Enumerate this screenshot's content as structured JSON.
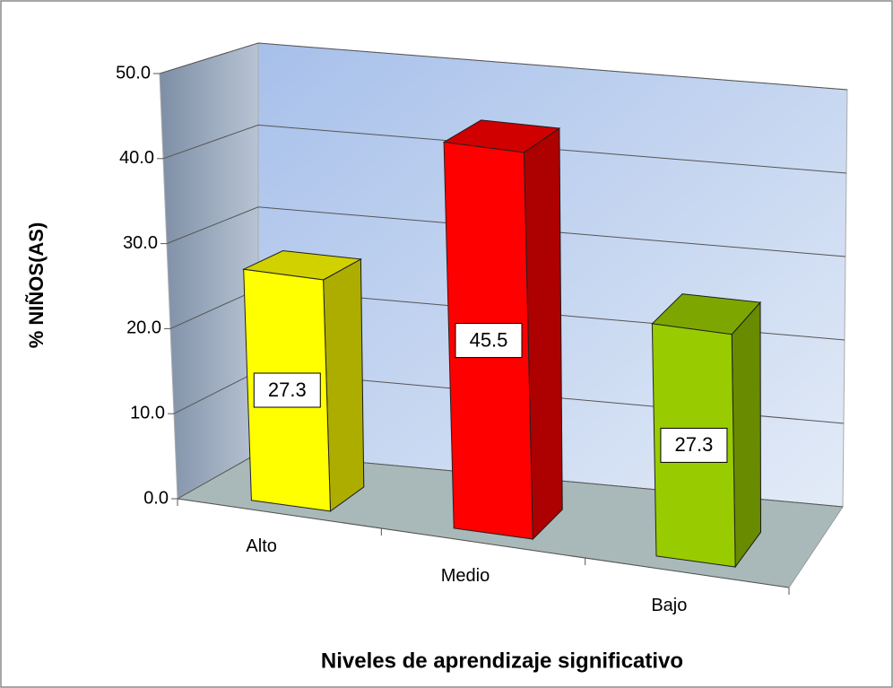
{
  "chart_data": {
    "type": "bar3d",
    "xlabel": "Niveles de aprendizaje significativo",
    "ylabel": "% NIÑOS(AS)",
    "categories": [
      "Alto",
      "Medio",
      "Bajo"
    ],
    "values": [
      27.3,
      45.5,
      27.3
    ],
    "colors": [
      "#ffff00",
      "#ff0000",
      "#99cc00"
    ],
    "ylim": [
      0,
      50
    ],
    "yticks": [
      {
        "value": 0,
        "label": "0.0"
      },
      {
        "value": 10,
        "label": "10.0"
      },
      {
        "value": 20,
        "label": "20.0"
      },
      {
        "value": 30,
        "label": "30.0"
      },
      {
        "value": 40,
        "label": "40.0"
      },
      {
        "value": 50,
        "label": "50.0"
      }
    ],
    "grid": true
  }
}
